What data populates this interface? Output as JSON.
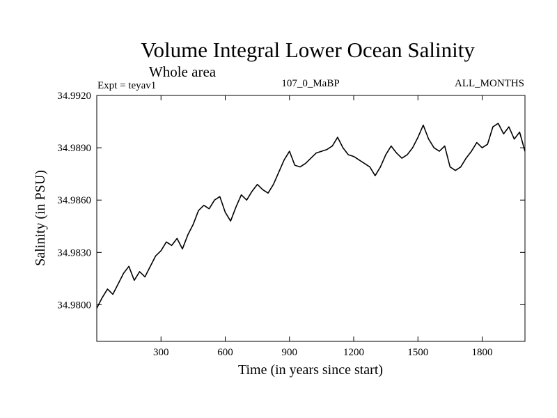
{
  "header": {
    "title": "Volume Integral Lower Ocean Salinity",
    "subtitle": "Whole area",
    "experiment": "Expt = teyav1",
    "period": "107_0_MaBP",
    "months": "ALL_MONTHS"
  },
  "chart_data": {
    "type": "line",
    "title": "Volume Integral Lower Ocean Salinity",
    "subtitle": "Whole area",
    "xlabel": "Time (in years since start)",
    "ylabel": "Salinity (in PSU)",
    "xlim": [
      0,
      2000
    ],
    "ylim": [
      34.9779,
      34.992
    ],
    "xticks": [
      300,
      600,
      900,
      1200,
      1500,
      1800
    ],
    "xtick_labels": [
      "300",
      "600",
      "900",
      "1200",
      "1500",
      "1800"
    ],
    "yticks": [
      34.98,
      34.983,
      34.986,
      34.989,
      34.992
    ],
    "ytick_labels": [
      "34.9800",
      "34.9830",
      "34.9860",
      "34.9890",
      "34.9920"
    ],
    "grid": false,
    "color": "#000000",
    "series": [
      {
        "name": "salinity",
        "x": [
          0,
          25,
          50,
          75,
          100,
          125,
          150,
          175,
          200,
          225,
          250,
          275,
          300,
          325,
          350,
          375,
          400,
          425,
          450,
          475,
          500,
          525,
          550,
          575,
          600,
          625,
          650,
          675,
          700,
          725,
          750,
          775,
          800,
          825,
          850,
          875,
          900,
          925,
          950,
          975,
          1000,
          1025,
          1050,
          1075,
          1100,
          1125,
          1150,
          1175,
          1200,
          1225,
          1250,
          1275,
          1300,
          1325,
          1350,
          1375,
          1400,
          1425,
          1450,
          1475,
          1500,
          1525,
          1550,
          1575,
          1600,
          1625,
          1650,
          1675,
          1700,
          1725,
          1750,
          1775,
          1800,
          1825,
          1850,
          1875,
          1900,
          1925,
          1950,
          1975,
          2000
        ],
        "values": [
          34.9798,
          34.9804,
          34.9809,
          34.9806,
          34.9812,
          34.9818,
          34.9822,
          34.9814,
          34.9819,
          34.9816,
          34.9822,
          34.9828,
          34.9831,
          34.9836,
          34.9834,
          34.9838,
          34.9832,
          34.984,
          34.9846,
          34.9854,
          34.9857,
          34.9855,
          34.986,
          34.9862,
          34.9853,
          34.9848,
          34.9856,
          34.9863,
          34.986,
          34.9865,
          34.9869,
          34.9866,
          34.9864,
          34.9869,
          34.9876,
          34.9883,
          34.9888,
          34.988,
          34.9879,
          34.9881,
          34.9884,
          34.9887,
          34.9888,
          34.9889,
          34.9891,
          34.9896,
          34.989,
          34.9886,
          34.9885,
          34.9883,
          34.9881,
          34.9879,
          34.9874,
          34.9879,
          34.9886,
          34.9891,
          34.9887,
          34.9884,
          34.9886,
          34.989,
          34.9896,
          34.9903,
          34.9895,
          34.989,
          34.9888,
          34.9891,
          34.9879,
          34.9877,
          34.9879,
          34.9884,
          34.9888,
          34.9893,
          34.989,
          34.9892,
          34.9902,
          34.9904,
          34.9898,
          34.9902,
          34.9895,
          34.9899,
          34.9888
        ]
      }
    ]
  }
}
